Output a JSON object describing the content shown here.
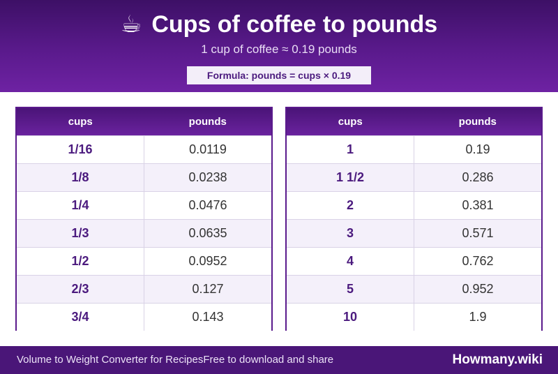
{
  "header": {
    "icon": "coffee-cup-icon",
    "icon_glyph": "☕",
    "title": "Cups of coffee to pounds",
    "subtitle": "1 cup of coffee ≈ 0.19 pounds",
    "formula": "Formula: pounds = cups × 0.19"
  },
  "tables": {
    "left": {
      "columns": [
        "cups",
        "pounds"
      ],
      "rows": [
        {
          "cups": "1/16",
          "pounds": "0.0119"
        },
        {
          "cups": "1/8",
          "pounds": "0.0238"
        },
        {
          "cups": "1/4",
          "pounds": "0.0476"
        },
        {
          "cups": "1/3",
          "pounds": "0.0635"
        },
        {
          "cups": "1/2",
          "pounds": "0.0952"
        },
        {
          "cups": "2/3",
          "pounds": "0.127"
        },
        {
          "cups": "3/4",
          "pounds": "0.143"
        }
      ]
    },
    "right": {
      "columns": [
        "cups",
        "pounds"
      ],
      "rows": [
        {
          "cups": "1",
          "pounds": "0.19"
        },
        {
          "cups": "1 1/2",
          "pounds": "0.286"
        },
        {
          "cups": "2",
          "pounds": "0.381"
        },
        {
          "cups": "3",
          "pounds": "0.571"
        },
        {
          "cups": "4",
          "pounds": "0.762"
        },
        {
          "cups": "5",
          "pounds": "0.952"
        },
        {
          "cups": "10",
          "pounds": "1.9"
        }
      ]
    }
  },
  "footer": {
    "left_text": "Volume to Weight Converter for RecipesFree to download and share",
    "brand": "Howmany.wiki"
  },
  "colors": {
    "brand_purple": "#5a1a8c",
    "accent_text": "#4b1a7e",
    "row_alt": "#f4f0fa"
  }
}
